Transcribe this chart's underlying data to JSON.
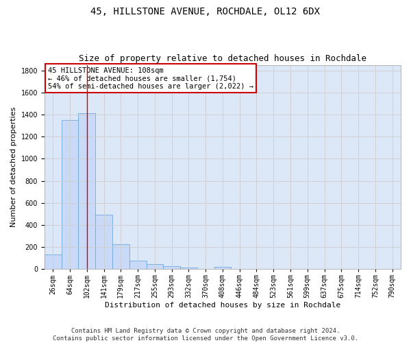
{
  "title": "45, HILLSTONE AVENUE, ROCHDALE, OL12 6DX",
  "subtitle": "Size of property relative to detached houses in Rochdale",
  "xlabel": "Distribution of detached houses by size in Rochdale",
  "ylabel": "Number of detached properties",
  "categories": [
    "26sqm",
    "64sqm",
    "102sqm",
    "141sqm",
    "179sqm",
    "217sqm",
    "255sqm",
    "293sqm",
    "332sqm",
    "370sqm",
    "408sqm",
    "446sqm",
    "484sqm",
    "523sqm",
    "561sqm",
    "599sqm",
    "637sqm",
    "675sqm",
    "714sqm",
    "752sqm",
    "790sqm"
  ],
  "values": [
    135,
    1350,
    1410,
    490,
    225,
    75,
    45,
    27,
    15,
    0,
    20,
    0,
    0,
    0,
    0,
    0,
    0,
    0,
    0,
    0,
    0
  ],
  "bar_color": "#c9daf8",
  "bar_edge_color": "#6fa8dc",
  "grid_color": "#cccccc",
  "vline_x": 2,
  "vline_color": "#cc0000",
  "annotation_text": "45 HILLSTONE AVENUE: 108sqm\n← 46% of detached houses are smaller (1,754)\n54% of semi-detached houses are larger (2,022) →",
  "annotation_box_color": "#ffffff",
  "annotation_border_color": "#cc0000",
  "ylim": [
    0,
    1850
  ],
  "yticks": [
    0,
    200,
    400,
    600,
    800,
    1000,
    1200,
    1400,
    1600,
    1800
  ],
  "footer": "Contains HM Land Registry data © Crown copyright and database right 2024.\nContains public sector information licensed under the Open Government Licence v3.0.",
  "bg_color": "#ffffff",
  "plot_bg_color": "#dce8f8",
  "title_fontsize": 10,
  "subtitle_fontsize": 9,
  "tick_fontsize": 7,
  "ylabel_fontsize": 8,
  "xlabel_fontsize": 8,
  "footer_fontsize": 6.5,
  "annotation_fontsize": 7.5
}
